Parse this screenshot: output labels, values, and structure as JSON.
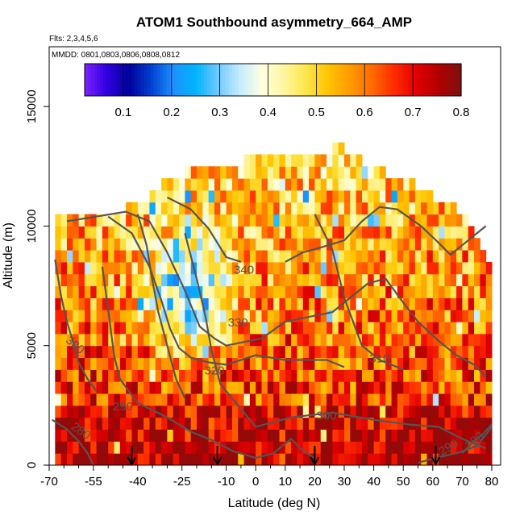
{
  "chart_data": {
    "type": "heatmap",
    "title": "ATOM1 Southbound asymmetry_664_AMP",
    "flights_note": "Flts: 2,3,4,5,6",
    "dates_note": "MMDD: 0801,0803,0806,0808,0812",
    "xlabel": "Latitude (deg N)",
    "ylabel": "Altitude (m)",
    "xlim": [
      -70,
      83
    ],
    "ylim": [
      0,
      17500
    ],
    "x_ticks": [
      -70,
      -55,
      -40,
      -25,
      -10,
      0,
      10,
      20,
      30,
      40,
      50,
      60,
      70,
      80
    ],
    "x_minor_ticks": [
      -65,
      -60,
      -50,
      -45,
      -35,
      -30,
      -20,
      -15,
      -5,
      5,
      15,
      25,
      35,
      45,
      55,
      65,
      75
    ],
    "y_ticks": [
      0,
      5000,
      10000,
      15000
    ],
    "colorbar": {
      "min": 0.02,
      "max": 0.8,
      "ticks": [
        0.1,
        0.2,
        0.3,
        0.4,
        0.5,
        0.6,
        0.7,
        0.8
      ],
      "colors": [
        "#7d21ff",
        "#3000e0",
        "#00009a",
        "#0040d0",
        "#1e90ff",
        "#00b4ff",
        "#6ec8ff",
        "#c4ecff",
        "#ffffe0",
        "#fff5a0",
        "#ffe64a",
        "#ffc400",
        "#ff9a00",
        "#ff6a00",
        "#ff2a00",
        "#e00000",
        "#b00000",
        "#801010"
      ]
    },
    "heatmap_extent": {
      "x_edges": [
        -68,
        -66,
        -64,
        -62,
        -60,
        -58,
        -56,
        -54,
        -52,
        -50,
        -48,
        -46,
        -44,
        -42,
        -40,
        -38,
        -36,
        -34,
        -32,
        -30,
        -28,
        -26,
        -24,
        -22,
        -20,
        -18,
        -16,
        -14,
        -12,
        -10,
        -8,
        -6,
        -4,
        -2,
        0,
        2,
        4,
        6,
        8,
        10,
        12,
        14,
        16,
        18,
        20,
        22,
        24,
        26,
        28,
        30,
        32,
        34,
        36,
        38,
        40,
        42,
        44,
        46,
        48,
        50,
        52,
        54,
        56,
        58,
        60,
        62,
        64,
        66,
        68,
        70,
        72,
        74,
        76,
        78,
        80
      ],
      "top_altitude_m": [
        10200,
        10200,
        10200,
        10200,
        10200,
        10200,
        10200,
        10200,
        10200,
        10200,
        10400,
        10400,
        10600,
        10600,
        10800,
        11000,
        11200,
        11400,
        11600,
        11800,
        12000,
        12000,
        12200,
        12200,
        12200,
        12200,
        12200,
        12200,
        12200,
        12200,
        12400,
        12400,
        12600,
        12600,
        12800,
        12800,
        12800,
        12800,
        12800,
        12800,
        12800,
        12800,
        12800,
        12800,
        12800,
        12800,
        12800,
        13400,
        13400,
        12800,
        12800,
        12600,
        12400,
        12400,
        12200,
        12200,
        12000,
        11800,
        11800,
        11600,
        11600,
        11400,
        11200,
        11200,
        11000,
        11000,
        10800,
        10600,
        10400,
        10200,
        9800,
        9400,
        9000,
        8400
      ],
      "row_height_m": 500
    },
    "contour_labels": [
      "280",
      "280",
      "290",
      "290",
      "300",
      "300",
      "310",
      "320",
      "330",
      "340"
    ],
    "contour_lines": [
      {
        "level": 280,
        "points": [
          [
            -69,
            1900
          ],
          [
            -64,
            1500
          ],
          [
            -60,
            1000
          ],
          [
            -57,
            500
          ],
          [
            -55,
            0
          ]
        ]
      },
      {
        "level": 280,
        "points": [
          [
            80,
            1700
          ],
          [
            77,
            1300
          ],
          [
            73,
            900
          ],
          [
            70,
            500
          ]
        ]
      },
      {
        "level": 290,
        "points": [
          [
            -52,
            8300
          ],
          [
            -50,
            6500
          ],
          [
            -48,
            4600
          ],
          [
            -46,
            3600
          ],
          [
            -40,
            2600
          ],
          [
            -30,
            2000
          ],
          [
            -22,
            1400
          ],
          [
            -14,
            1000
          ],
          [
            -8,
            600
          ],
          [
            0,
            300
          ],
          [
            6,
            500
          ],
          [
            12,
            1100
          ],
          [
            16,
            600
          ],
          [
            20,
            300
          ]
        ]
      },
      {
        "level": 290,
        "points": [
          [
            80,
            1600
          ],
          [
            75,
            800
          ],
          [
            68,
            500
          ],
          [
            61,
            300
          ],
          [
            55,
            100
          ]
        ]
      },
      {
        "level": 300,
        "points": [
          [
            -68,
            8600
          ],
          [
            -66,
            7100
          ],
          [
            -64,
            6000
          ],
          [
            -62,
            5200
          ],
          [
            -60,
            4300
          ],
          [
            -57,
            3600
          ],
          [
            -54,
            3100
          ]
        ]
      },
      {
        "level": 300,
        "points": [
          [
            -24,
            9700
          ],
          [
            -20,
            7800
          ],
          [
            -17,
            6200
          ],
          [
            -15,
            4800
          ],
          [
            -12,
            3400
          ],
          [
            -8,
            2800
          ],
          [
            0,
            1600
          ],
          [
            12,
            2000
          ],
          [
            26,
            2200
          ],
          [
            40,
            1900
          ],
          [
            52,
            1700
          ],
          [
            62,
            1600
          ],
          [
            70,
            1100
          ],
          [
            78,
            700
          ]
        ]
      },
      {
        "level": 310,
        "points": [
          [
            -40,
            10500
          ],
          [
            -37,
            9200
          ],
          [
            -35,
            7700
          ],
          [
            -33,
            6400
          ],
          [
            -30,
            5000
          ],
          [
            -27,
            3600
          ],
          [
            -24,
            2800
          ]
        ]
      },
      {
        "level": 310,
        "points": [
          [
            20,
            10500
          ],
          [
            26,
            9000
          ],
          [
            30,
            7000
          ],
          [
            36,
            5000
          ],
          [
            42,
            4400
          ],
          [
            50,
            4000
          ]
        ]
      },
      {
        "level": 320,
        "points": [
          [
            -50,
            10400
          ],
          [
            -42,
            9700
          ],
          [
            -36,
            8300
          ],
          [
            -32,
            6900
          ],
          [
            -29,
            5700
          ],
          [
            -26,
            4900
          ],
          [
            -22,
            4500
          ],
          [
            -16,
            4300
          ],
          [
            -10,
            4200
          ],
          [
            0,
            4600
          ],
          [
            10,
            4400
          ],
          [
            24,
            4400
          ],
          [
            30,
            4100
          ]
        ]
      },
      {
        "level": 330,
        "points": [
          [
            -64,
            10200
          ],
          [
            -54,
            10400
          ],
          [
            -44,
            10600
          ],
          [
            -36,
            10200
          ],
          [
            -30,
            8900
          ],
          [
            -24,
            7300
          ],
          [
            -19,
            5800
          ],
          [
            -14,
            5300
          ],
          [
            -10,
            5000
          ],
          [
            2,
            5300
          ],
          [
            10,
            6000
          ],
          [
            18,
            6200
          ],
          [
            26,
            6400
          ],
          [
            32,
            7000
          ],
          [
            38,
            7600
          ],
          [
            44,
            7800
          ],
          [
            50,
            6800
          ],
          [
            55,
            6000
          ],
          [
            62,
            5200
          ],
          [
            68,
            4600
          ],
          [
            74,
            4200
          ],
          [
            78,
            3700
          ]
        ]
      },
      {
        "level": 340,
        "points": [
          [
            -30,
            11200
          ],
          [
            -22,
            10700
          ],
          [
            -16,
            9900
          ],
          [
            -10,
            8700
          ],
          [
            -5,
            8500
          ]
        ]
      },
      {
        "level": 340,
        "points": [
          [
            10,
            8500
          ],
          [
            16,
            8900
          ],
          [
            22,
            9100
          ],
          [
            30,
            9400
          ],
          [
            36,
            10200
          ],
          [
            42,
            10800
          ],
          [
            48,
            10700
          ],
          [
            56,
            10000
          ],
          [
            62,
            9300
          ],
          [
            66,
            8800
          ],
          [
            72,
            9400
          ],
          [
            78,
            10000
          ]
        ]
      }
    ],
    "flight_arrows_lat": [
      -42,
      -13,
      20,
      61
    ],
    "grid": false,
    "legend": "colorbar-top"
  }
}
